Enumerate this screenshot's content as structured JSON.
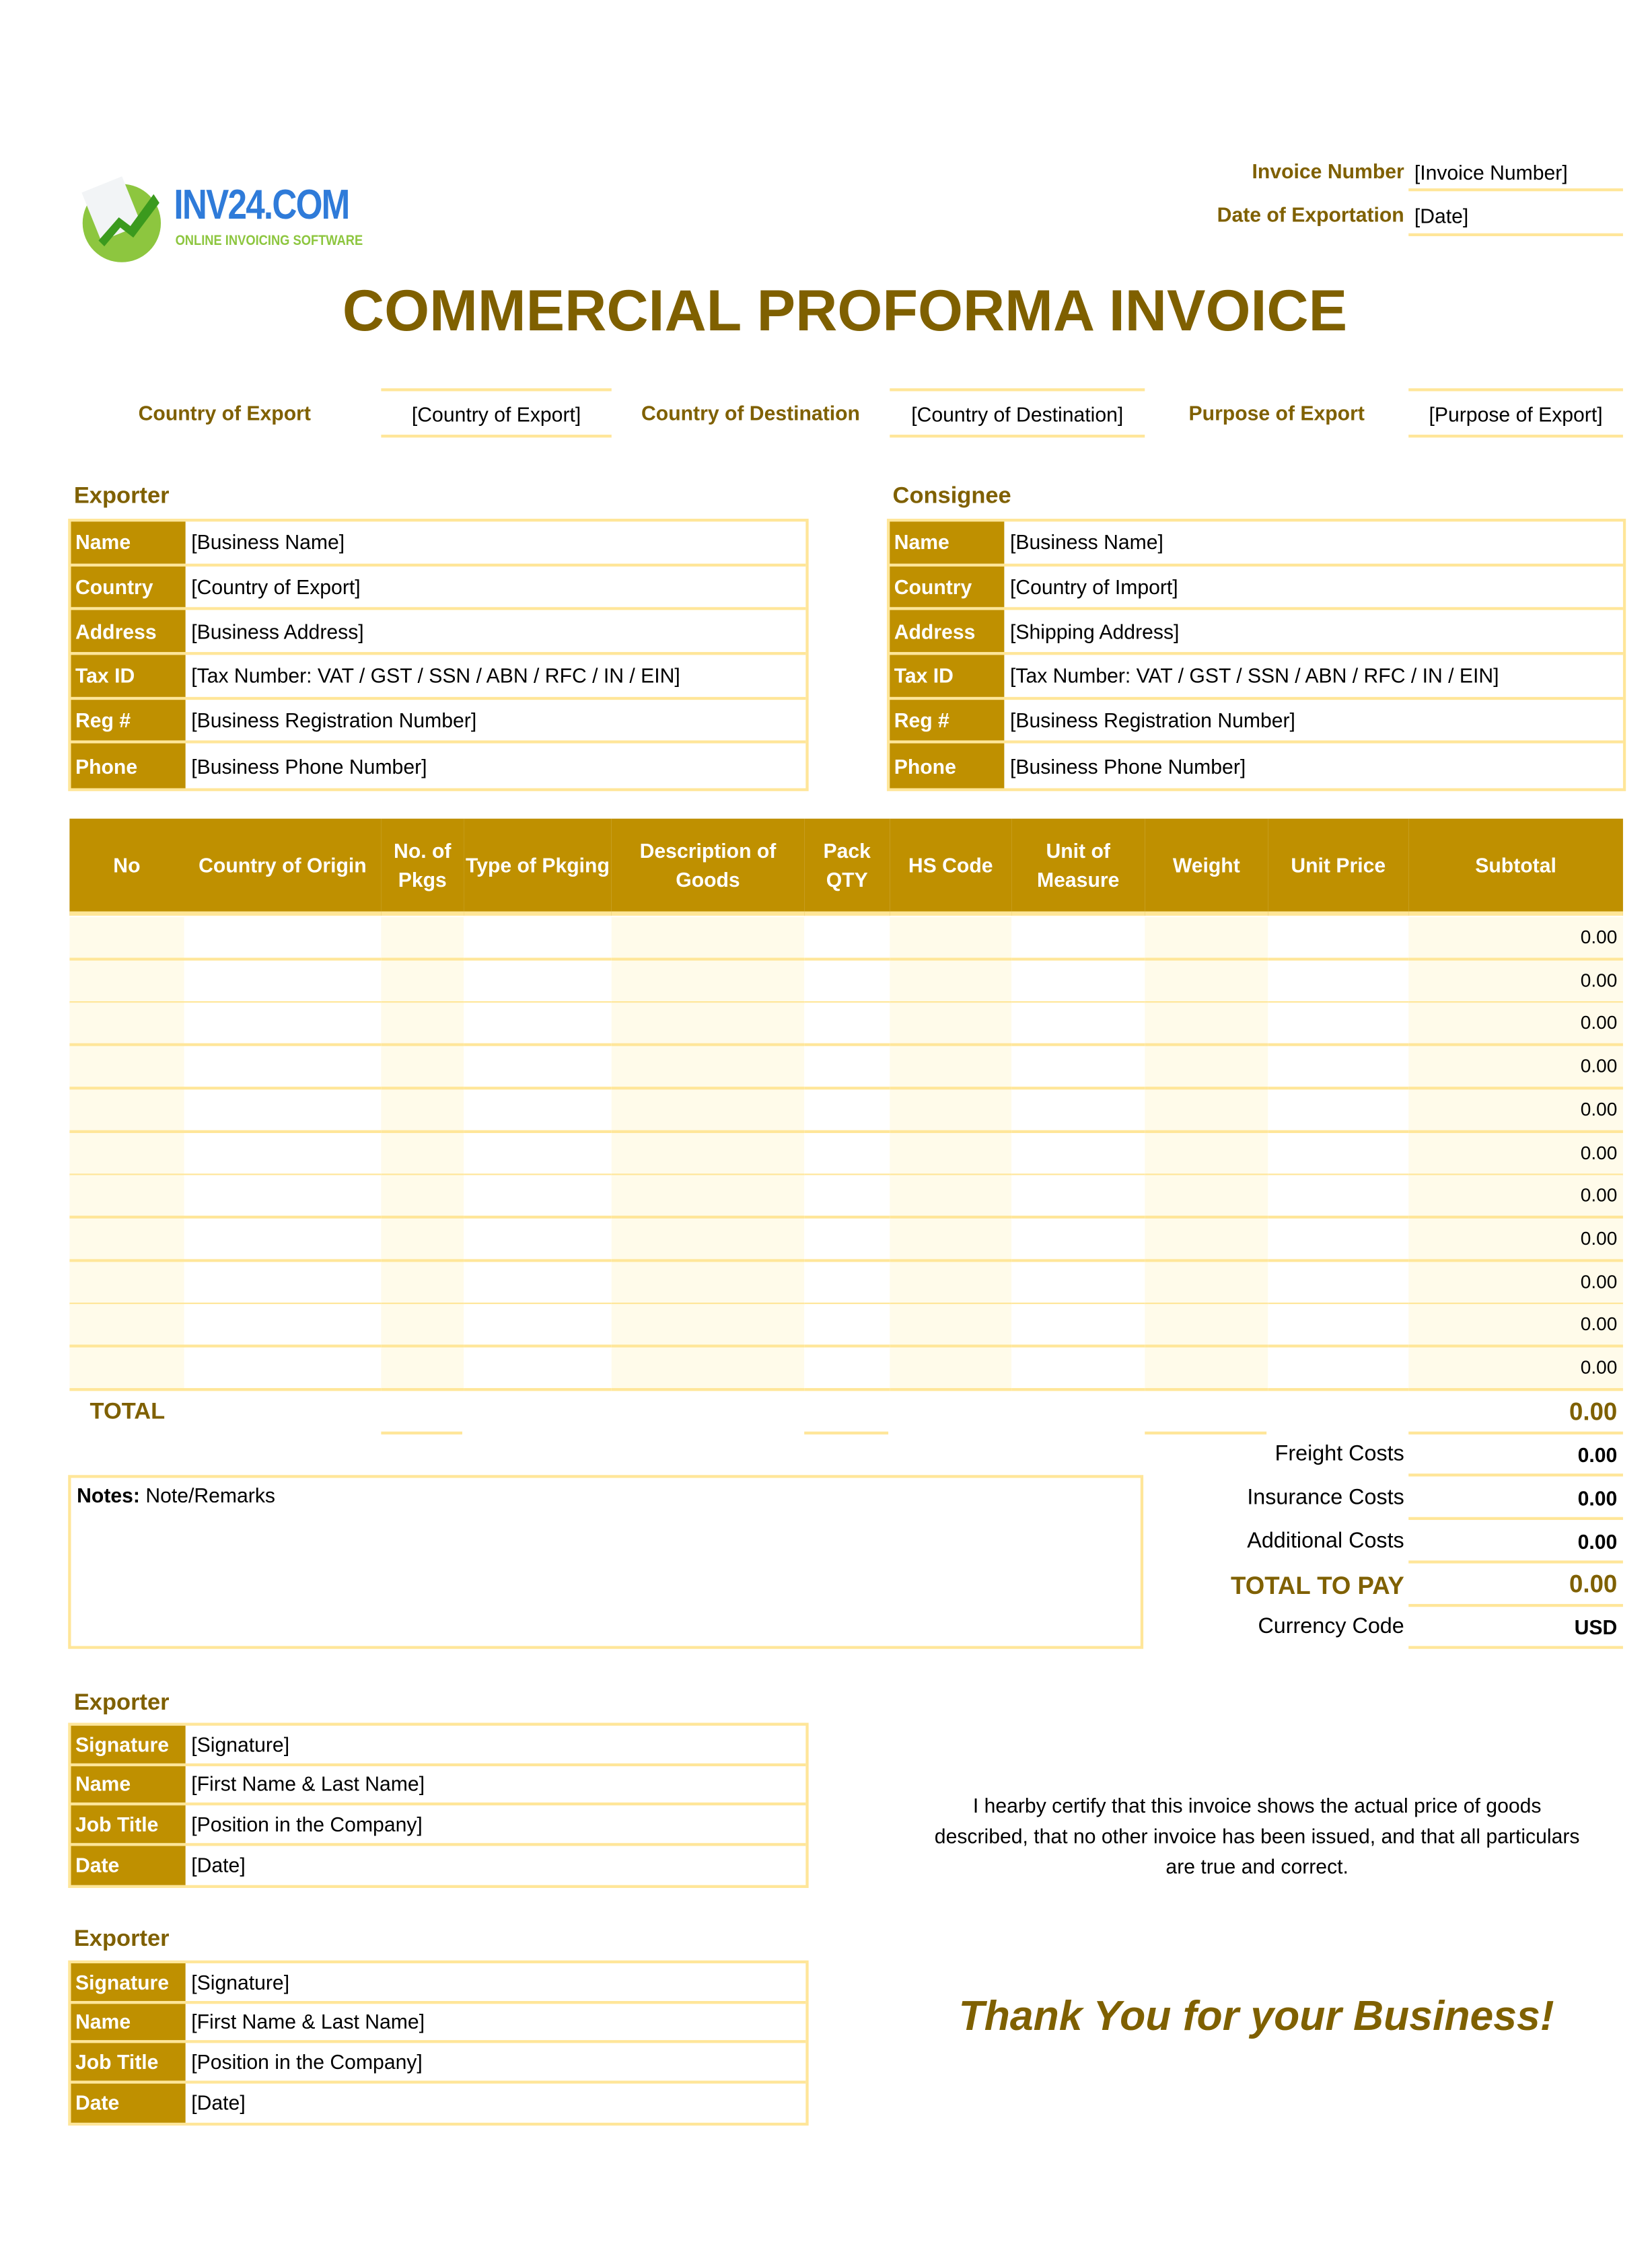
{
  "logo": {
    "name": "INV24.COM",
    "tagline": "ONLINE INVOICING SOFTWARE"
  },
  "header": {
    "invoice_number_label": "Invoice Number",
    "invoice_number_value": "[Invoice Number]",
    "date_label": "Date of Exportation",
    "date_value": "[Date]"
  },
  "title": "COMMERCIAL PROFORMA INVOICE",
  "meta": [
    {
      "label": "Country of Export",
      "value": "[Country of Export]"
    },
    {
      "label": "Country of Destination",
      "value": "[Country of Destination]"
    },
    {
      "label": "Purpose of Export",
      "value": "[Purpose of Export]"
    }
  ],
  "exporter": {
    "title": "Exporter",
    "rows": [
      {
        "label": "Name",
        "value": "[Business Name]"
      },
      {
        "label": "Country",
        "value": "[Country of Export]"
      },
      {
        "label": "Address",
        "value": "[Business Address]"
      },
      {
        "label": "Tax ID",
        "value": "[Tax Number: VAT / GST / SSN / ABN / RFC / IN / EIN]"
      },
      {
        "label": "Reg #",
        "value": "[Business Registration Number]"
      },
      {
        "label": "Phone",
        "value": "[Business Phone Number]"
      }
    ]
  },
  "consignee": {
    "title": "Consignee",
    "rows": [
      {
        "label": "Name",
        "value": "[Business Name]"
      },
      {
        "label": "Country",
        "value": "[Country of Import]"
      },
      {
        "label": "Address",
        "value": "[Shipping Address]"
      },
      {
        "label": "Tax ID",
        "value": "[Tax Number: VAT / GST / SSN / ABN / RFC / IN / EIN]"
      },
      {
        "label": "Reg #",
        "value": "[Business Registration Number]"
      },
      {
        "label": "Phone",
        "value": "[Business Phone Number]"
      }
    ]
  },
  "table": {
    "columns": [
      "No",
      "Country of Origin",
      "No. of Pkgs",
      "Type of Pkging",
      "Description of Goods",
      "Pack QTY",
      "HS Code",
      "Unit of Measure",
      "Weight",
      "Unit Price",
      "Subtotal"
    ],
    "subtotals": [
      "0.00",
      "0.00",
      "0.00",
      "0.00",
      "0.00",
      "0.00",
      "0.00",
      "0.00",
      "0.00",
      "0.00",
      "0.00"
    ],
    "total_label": "TOTAL",
    "total_value": "0.00"
  },
  "summary": [
    {
      "label": "Freight Costs",
      "value": "0.00"
    },
    {
      "label": "Insurance Costs",
      "value": "0.00"
    },
    {
      "label": "Additional Costs",
      "value": "0.00"
    },
    {
      "label": "TOTAL TO PAY",
      "value": "0.00"
    },
    {
      "label": "Currency Code",
      "value": "USD"
    }
  ],
  "notes": {
    "label": "Notes:",
    "value": "Note/Remarks"
  },
  "signatures": [
    {
      "title": "Exporter",
      "rows": [
        {
          "label": "Signature",
          "value": "[Signature]"
        },
        {
          "label": "Name",
          "value": "[First Name & Last Name]"
        },
        {
          "label": "Job Title",
          "value": "[Position in the Company]"
        },
        {
          "label": "Date",
          "value": "[Date]"
        }
      ]
    },
    {
      "title": "Exporter",
      "rows": [
        {
          "label": "Signature",
          "value": "[Signature]"
        },
        {
          "label": "Name",
          "value": "[First Name & Last Name]"
        },
        {
          "label": "Job Title",
          "value": "[Position in the Company]"
        },
        {
          "label": "Date",
          "value": "[Date]"
        }
      ]
    }
  ],
  "certification": "I hearby certify that this invoice shows the actual price of goods described, that no other invoice has been issued, and that all particulars are true and correct.",
  "thank_you": "Thank You for your Business!",
  "colors": {
    "gold": "#bf9000",
    "olive": "#7f6000",
    "line": "#ffe699",
    "shade": "#fffbea"
  }
}
